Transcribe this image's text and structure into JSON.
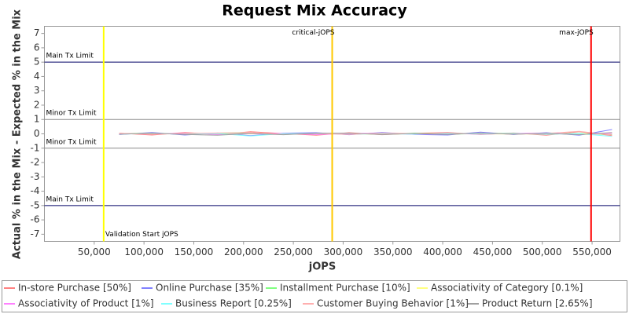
{
  "chart_data": {
    "type": "line",
    "title": "Request Mix Accuracy",
    "x_label": "jOPS",
    "y_label": "Actual % in the Mix - Expected % in the Mix",
    "xlim": [
      0,
      578000
    ],
    "ylim": [
      -7.5,
      7.5
    ],
    "xticks": [
      {
        "value": 50000,
        "label": "50,000"
      },
      {
        "value": 100000,
        "label": "100,000"
      },
      {
        "value": 150000,
        "label": "150,000"
      },
      {
        "value": 200000,
        "label": "200,000"
      },
      {
        "value": 250000,
        "label": "250,000"
      },
      {
        "value": 300000,
        "label": "300,000"
      },
      {
        "value": 350000,
        "label": "350,000"
      },
      {
        "value": 400000,
        "label": "400,000"
      },
      {
        "value": 450000,
        "label": "450,000"
      },
      {
        "value": 500000,
        "label": "500,000"
      },
      {
        "value": 550000,
        "label": "550,000"
      }
    ],
    "yticks": [
      -7,
      -6,
      -5,
      -4,
      -3,
      -2,
      -1,
      0,
      1,
      2,
      3,
      4,
      5,
      6,
      7
    ],
    "threshold_lines": [
      {
        "label": "Main Tx Limit",
        "value": 5,
        "color": "#000066"
      },
      {
        "label": "Minor Tx Limit",
        "value": 1,
        "color": "#888888"
      },
      {
        "label": "Minor Tx Limit",
        "value": -1,
        "color": "#888888"
      },
      {
        "label": "Main Tx Limit",
        "value": -5,
        "color": "#000066"
      }
    ],
    "markers": [
      {
        "label": "Validation Start jOPS",
        "value": 59500,
        "color": "#ffff00",
        "label_position": "bottom-right"
      },
      {
        "label": "critical-jOPS",
        "value": 289000,
        "color": "#ffc800",
        "label_position": "top-left"
      },
      {
        "label": "max-jOPS",
        "value": 549000,
        "color": "#ff0000",
        "label_position": "top-left"
      }
    ],
    "x": [
      75000,
      108000,
      141000,
      174000,
      207000,
      240000,
      273000,
      306000,
      339000,
      372000,
      405000,
      438000,
      471000,
      504000,
      537000,
      570000
    ],
    "series": [
      {
        "name": "In-store Purchase [50%]",
        "color": "#ff8080",
        "values": [
          0.05,
          -0.08,
          0.1,
          -0.05,
          0.15,
          0.02,
          -0.1,
          0.08,
          -0.06,
          0.04,
          0.1,
          -0.05,
          0.06,
          -0.1,
          0.15,
          -0.12
        ]
      },
      {
        "name": "Online Purchase [35%]",
        "color": "#8080ff",
        "values": [
          -0.05,
          0.1,
          -0.08,
          0.06,
          -0.12,
          0.05,
          0.08,
          -0.06,
          0.1,
          -0.04,
          -0.08,
          0.12,
          -0.05,
          0.08,
          -0.1,
          0.3
        ]
      },
      {
        "name": "Installment Purchase [10%]",
        "color": "#80ff80",
        "values": [
          0.02,
          0.04,
          -0.03,
          0.05,
          0.02,
          -0.04,
          0.03,
          0.01,
          -0.02,
          0.05,
          -0.03,
          0.02,
          0.04,
          -0.02,
          0.03,
          -0.05
        ]
      },
      {
        "name": "Associativity of Category [0.1%]",
        "color": "#ffff80",
        "values": [
          0.0,
          0.01,
          0.0,
          -0.01,
          0.0,
          0.01,
          0.0,
          0.0,
          -0.01,
          0.0,
          0.01,
          0.0,
          -0.01,
          0.0,
          0.0,
          0.01
        ]
      },
      {
        "name": "Associativity of Product [1%]",
        "color": "#ff80ff",
        "values": [
          0.03,
          -0.02,
          0.05,
          -0.04,
          0.02,
          0.03,
          -0.05,
          0.02,
          0.04,
          -0.03,
          0.02,
          -0.02,
          0.03,
          0.05,
          -0.04,
          0.02
        ]
      },
      {
        "name": "Business Report [0.25%]",
        "color": "#80ffff",
        "values": [
          -0.02,
          0.03,
          -0.01,
          0.02,
          -0.15,
          0.01,
          0.02,
          -0.03,
          0.01,
          -0.02,
          0.03,
          -0.01,
          0.02,
          -0.03,
          0.01,
          -0.18
        ]
      },
      {
        "name": "Customer Buying Behavior [1%]",
        "color": "#ffafaf",
        "values": [
          0.04,
          -0.03,
          0.02,
          0.06,
          0.1,
          -0.05,
          0.03,
          -0.04,
          0.05,
          0.02,
          -0.03,
          0.04,
          -0.02,
          0.03,
          0.18,
          -0.08
        ]
      },
      {
        "name": "Product Return [2.65%]",
        "color": "#a0a0a0",
        "values": [
          -0.03,
          0.05,
          -0.04,
          -0.1,
          0.03,
          -0.06,
          0.04,
          0.05,
          -0.05,
          0.03,
          -0.04,
          0.06,
          -0.03,
          0.04,
          -0.06,
          0.1
        ]
      }
    ]
  }
}
